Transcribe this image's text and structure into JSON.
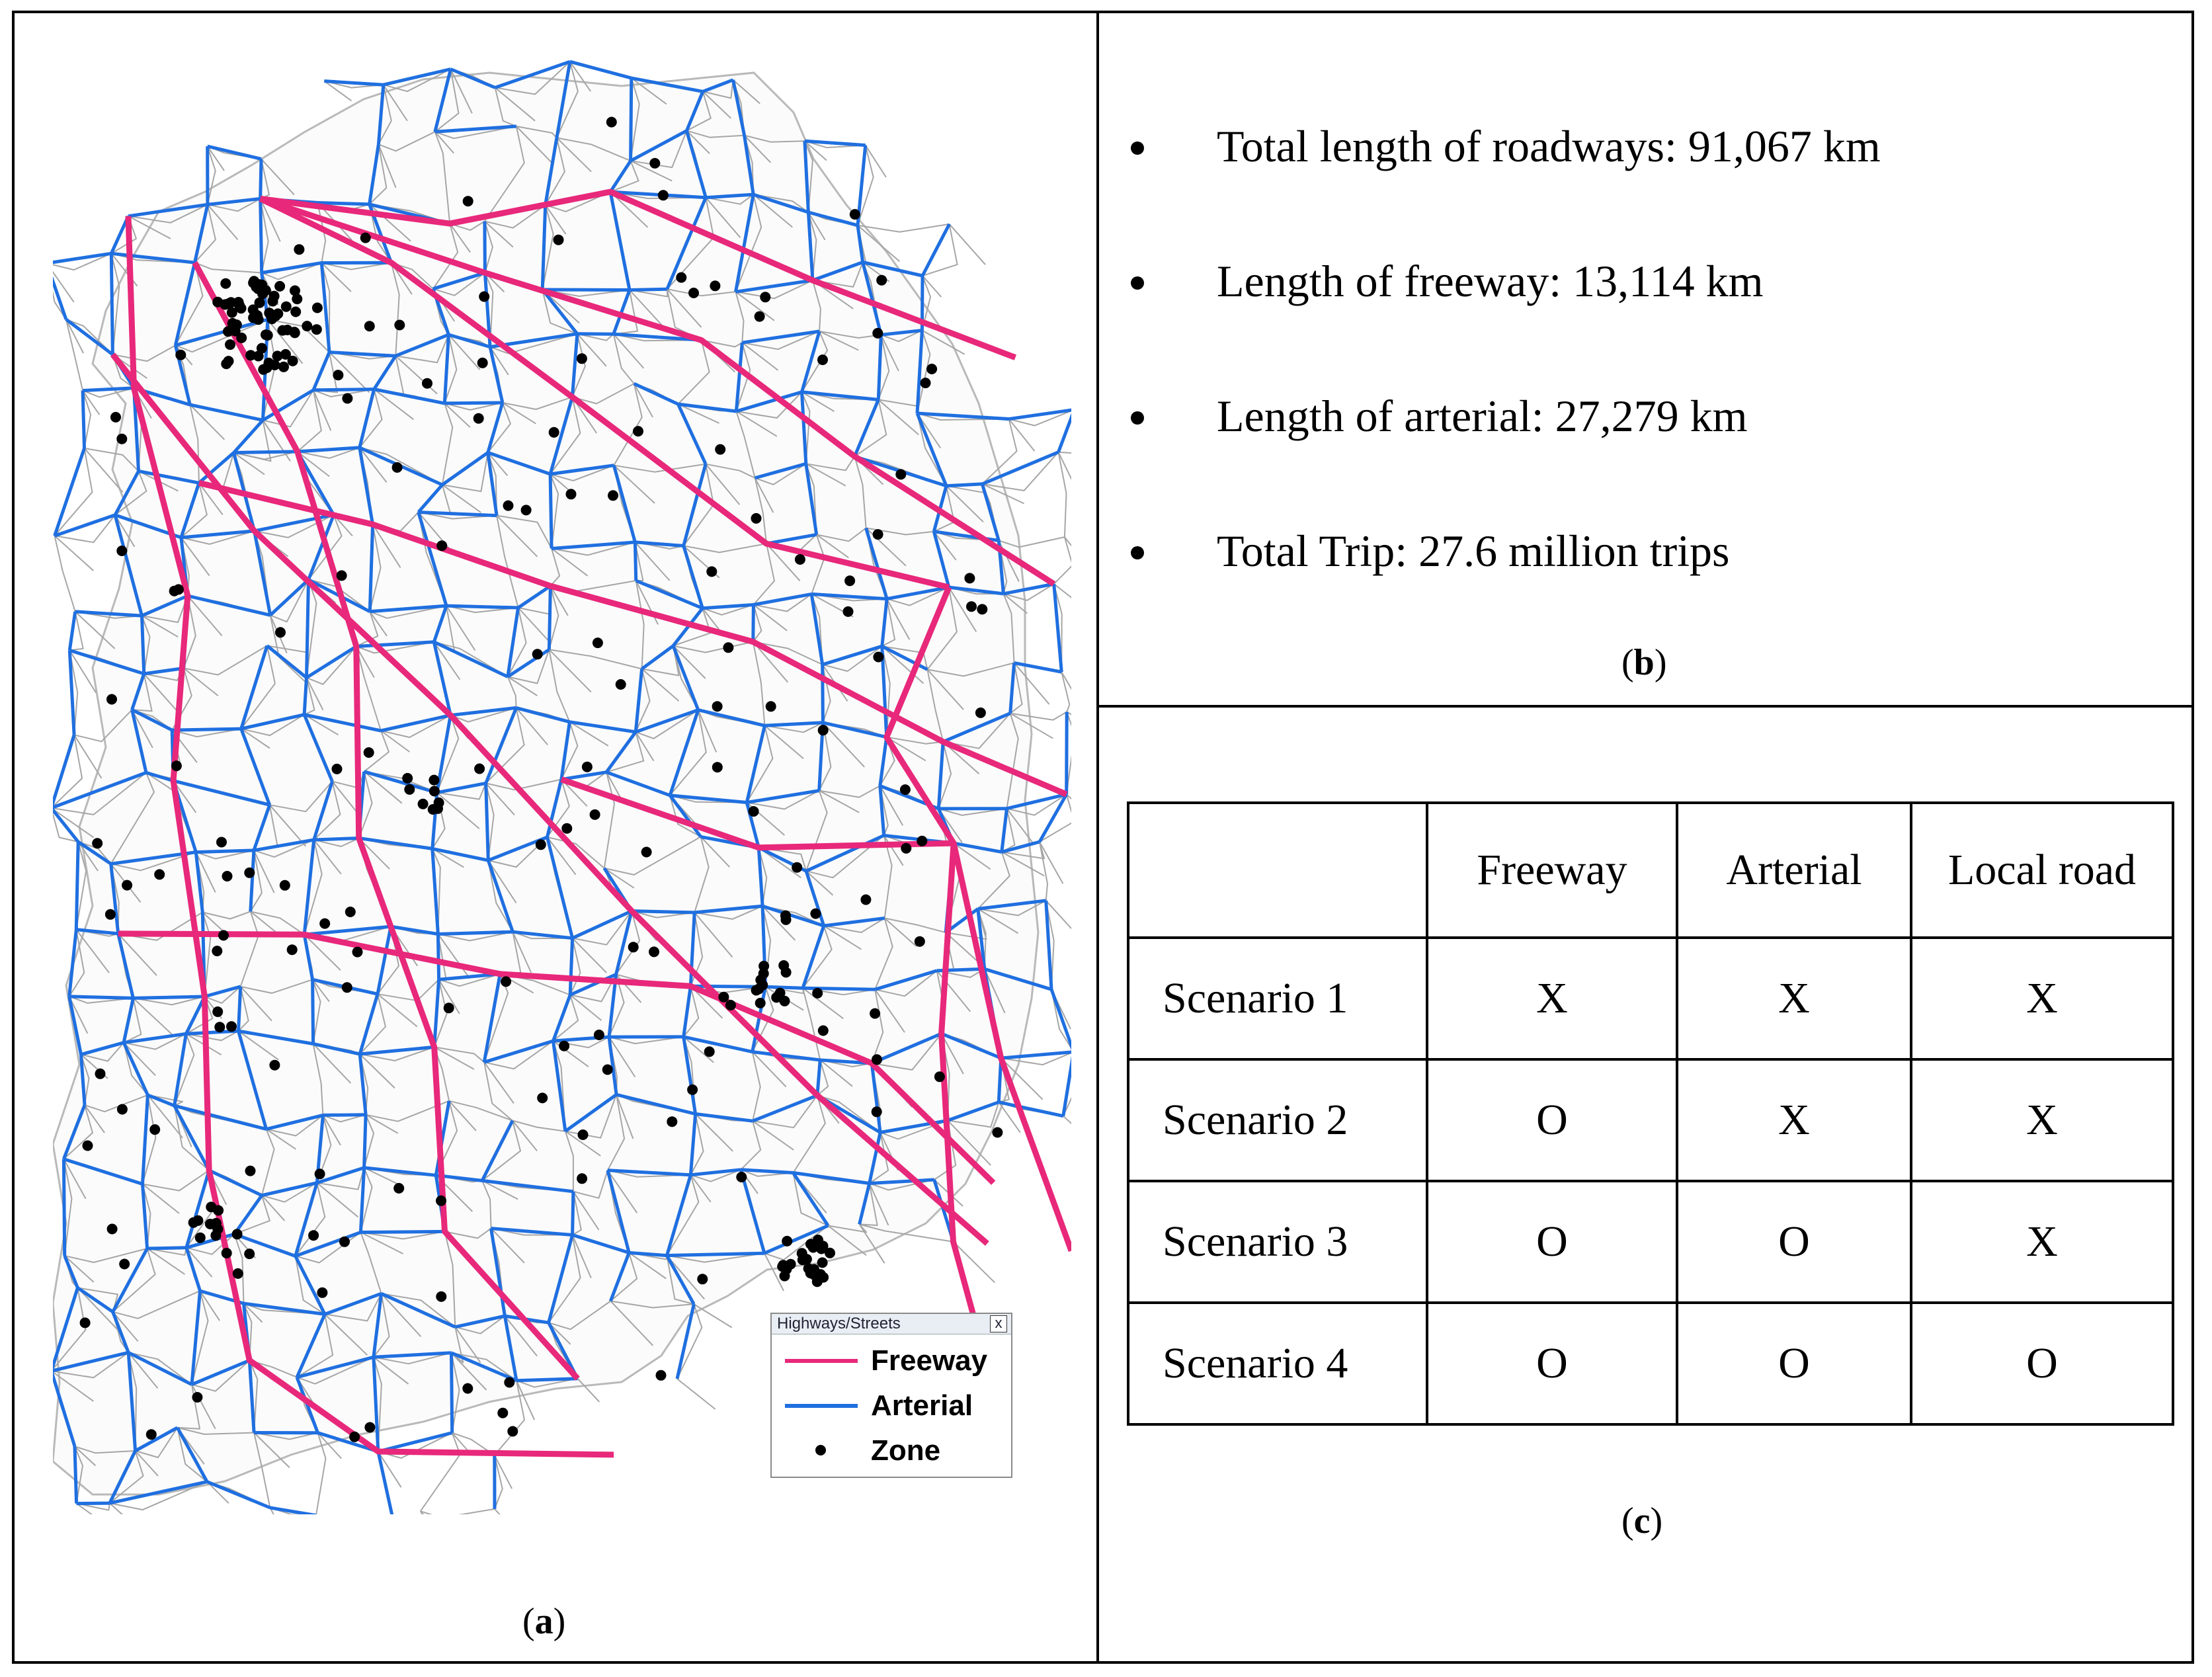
{
  "map": {
    "legend": {
      "title": "Highways/Streets",
      "close_glyph": "x",
      "items": [
        {
          "label": "Freeway",
          "color": "#e8287a",
          "kind": "line"
        },
        {
          "label": "Arterial",
          "color": "#1f6fe0",
          "kind": "line"
        },
        {
          "label": "Zone",
          "color": "#000000",
          "kind": "dot"
        }
      ]
    },
    "local_road_color": "#a6a6a6",
    "caption": {
      "open": "(",
      "letter": "a",
      "close": ")"
    }
  },
  "stats": {
    "items": [
      "Total length of roadways: 91,067 km",
      "Length of freeway: 13,114 km",
      "Length of arterial: 27,279 km",
      "Total Trip: 27.6 million trips"
    ],
    "caption": {
      "open": "(",
      "letter": "b",
      "close": ")"
    }
  },
  "scenarios": {
    "headers": [
      "",
      "Freeway",
      "Arterial",
      "Local road"
    ],
    "rows": [
      {
        "name": "Scenario 1",
        "values": [
          "X",
          "X",
          "X"
        ]
      },
      {
        "name": "Scenario 2",
        "values": [
          "O",
          "X",
          "X"
        ]
      },
      {
        "name": "Scenario 3",
        "values": [
          "O",
          "O",
          "X"
        ]
      },
      {
        "name": "Scenario 4",
        "values": [
          "O",
          "O",
          "O"
        ]
      }
    ],
    "caption": {
      "open": "(",
      "letter": "c",
      "close": ")"
    }
  }
}
